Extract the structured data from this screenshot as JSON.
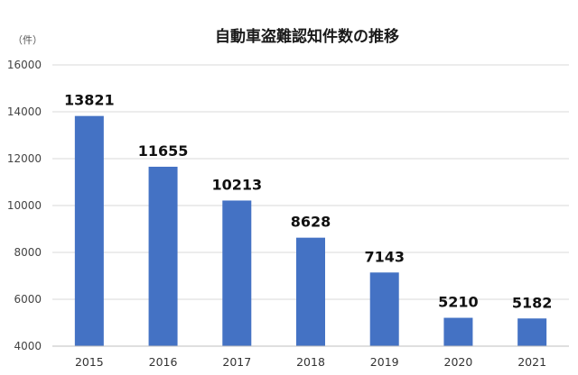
{
  "chart_data": {
    "type": "bar",
    "title": "自動車盗難認知件数の推移",
    "unit_label": "（件）",
    "categories": [
      "2015",
      "2016",
      "2017",
      "2018",
      "2019",
      "2020",
      "2021"
    ],
    "values": [
      13821,
      11655,
      10213,
      8628,
      7143,
      5210,
      5182
    ],
    "data_labels": [
      "13821",
      "11655",
      "10213",
      "8628",
      "7143",
      "5210",
      "5182"
    ],
    "ylim": [
      4000,
      16000
    ],
    "yticks": [
      4000,
      6000,
      8000,
      10000,
      12000,
      14000,
      16000
    ],
    "ytick_labels": [
      "4000",
      "6000",
      "8000",
      "10000",
      "12000",
      "14000",
      "16000"
    ],
    "xlabel": "",
    "ylabel": "",
    "grid": true,
    "legend": "none",
    "bar_color": "#4472C4"
  }
}
